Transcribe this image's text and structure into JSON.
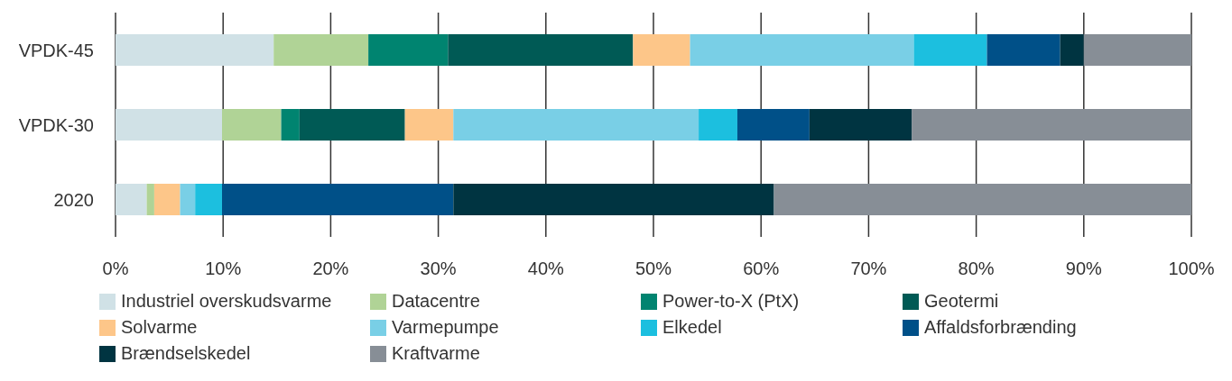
{
  "chart_data": {
    "type": "bar",
    "orientation": "horizontal",
    "stacked": true,
    "categories": [
      "VPDK-45",
      "VPDK-30",
      "2020"
    ],
    "series": [
      {
        "name": "Industriel overskudsvarme",
        "color": "#d0e1e6",
        "values": [
          14.7,
          9.9,
          2.9
        ]
      },
      {
        "name": "Datacentre",
        "color": "#b0d396",
        "values": [
          8.8,
          5.5,
          0.7
        ]
      },
      {
        "name": "Power-to-X (PtX)",
        "color": "#008470",
        "values": [
          7.4,
          1.7,
          0
        ]
      },
      {
        "name": "Geotermi",
        "color": "#005a55",
        "values": [
          17.2,
          9.8,
          0
        ]
      },
      {
        "name": "Solvarme",
        "color": "#fdc689",
        "values": [
          5.3,
          4.5,
          2.4
        ]
      },
      {
        "name": "Varmepumpe",
        "color": "#79cfe6",
        "values": [
          20.8,
          22.8,
          1.4
        ]
      },
      {
        "name": "Elkedel",
        "color": "#1cbfdf",
        "values": [
          6.8,
          3.6,
          2.5
        ]
      },
      {
        "name": "Affaldsforbrænding",
        "color": "#005088",
        "values": [
          6.8,
          6.7,
          21.5
        ]
      },
      {
        "name": "Brændselskedel",
        "color": "#003441",
        "values": [
          2.2,
          9.5,
          29.8
        ]
      },
      {
        "name": "Kraftvarme",
        "color": "#878e96",
        "values": [
          10.0,
          26.0,
          38.8
        ]
      }
    ],
    "xlim": [
      0,
      100
    ],
    "xticks": [
      {
        "value": 0,
        "label": "0%"
      },
      {
        "value": 10,
        "label": "10%"
      },
      {
        "value": 20,
        "label": "20%"
      },
      {
        "value": 30,
        "label": "30%"
      },
      {
        "value": 40,
        "label": "40%"
      },
      {
        "value": 50,
        "label": "50%"
      },
      {
        "value": 60,
        "label": "60%"
      },
      {
        "value": 70,
        "label": "70%"
      },
      {
        "value": 80,
        "label": "80%"
      },
      {
        "value": 90,
        "label": "90%"
      },
      {
        "value": 100,
        "label": "100%"
      }
    ],
    "grid": "x",
    "legend": "bottom"
  }
}
